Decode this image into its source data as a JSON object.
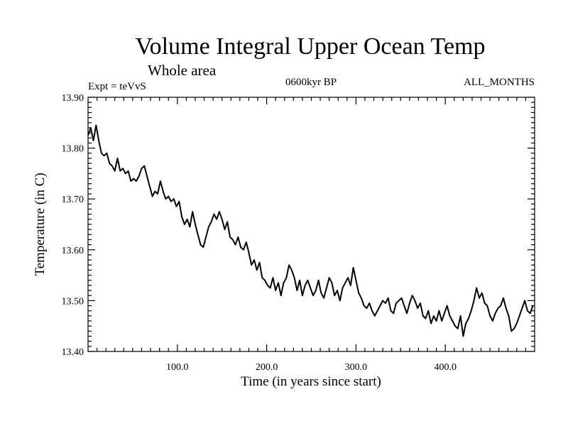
{
  "chart_data": {
    "type": "line",
    "title": "Volume Integral Upper Ocean Temp",
    "subtitle": "Whole area",
    "experiment": "Expt = teVvS",
    "period": "0600kyr BP",
    "months": "ALL_MONTHS",
    "xlabel": "Time (in years since start)",
    "ylabel": "Temperature (in C)",
    "xlim": [
      0,
      500
    ],
    "ylim": [
      13.4,
      13.9
    ],
    "xticks": [
      100,
      200,
      300,
      400
    ],
    "xtick_labels": [
      "100.0",
      "200.0",
      "300.0",
      "400.0"
    ],
    "yticks": [
      13.4,
      13.5,
      13.6,
      13.7,
      13.8,
      13.9
    ],
    "ytick_labels": [
      "13.40",
      "13.50",
      "13.60",
      "13.70",
      "13.80",
      "13.90"
    ],
    "grid": false,
    "series": [
      {
        "name": "teVvS",
        "x": [
          0,
          3,
          6,
          9,
          12,
          15,
          18,
          21,
          24,
          27,
          30,
          33,
          36,
          39,
          42,
          45,
          48,
          51,
          54,
          57,
          60,
          63,
          66,
          69,
          72,
          75,
          78,
          81,
          84,
          87,
          90,
          93,
          96,
          99,
          102,
          105,
          108,
          111,
          114,
          117,
          120,
          123,
          126,
          129,
          132,
          135,
          138,
          141,
          144,
          147,
          150,
          153,
          156,
          159,
          162,
          165,
          168,
          171,
          174,
          177,
          180,
          183,
          186,
          189,
          192,
          195,
          198,
          201,
          204,
          207,
          210,
          213,
          216,
          219,
          222,
          225,
          228,
          231,
          234,
          237,
          240,
          243,
          246,
          249,
          252,
          255,
          258,
          261,
          264,
          267,
          270,
          273,
          276,
          279,
          282,
          285,
          288,
          291,
          294,
          297,
          300,
          303,
          306,
          309,
          312,
          315,
          318,
          321,
          324,
          327,
          330,
          333,
          336,
          339,
          342,
          345,
          348,
          351,
          354,
          357,
          360,
          363,
          366,
          369,
          372,
          375,
          378,
          381,
          384,
          387,
          390,
          393,
          396,
          399,
          402,
          405,
          408,
          411,
          414,
          417,
          420,
          423,
          426,
          429,
          432,
          435,
          438,
          441,
          444,
          447,
          450,
          453,
          456,
          459,
          462,
          465,
          468,
          471,
          474,
          477,
          480,
          483,
          486,
          489,
          492,
          495,
          498
        ],
        "values": [
          13.825,
          13.84,
          13.815,
          13.845,
          13.815,
          13.79,
          13.785,
          13.79,
          13.77,
          13.765,
          13.755,
          13.78,
          13.755,
          13.76,
          13.75,
          13.755,
          13.735,
          13.74,
          13.735,
          13.745,
          13.76,
          13.765,
          13.745,
          13.725,
          13.705,
          13.715,
          13.71,
          13.735,
          13.715,
          13.7,
          13.705,
          13.695,
          13.7,
          13.685,
          13.695,
          13.665,
          13.65,
          13.66,
          13.645,
          13.675,
          13.65,
          13.63,
          13.61,
          13.605,
          13.625,
          13.645,
          13.655,
          13.67,
          13.66,
          13.675,
          13.66,
          13.64,
          13.655,
          13.625,
          13.62,
          13.61,
          13.625,
          13.605,
          13.6,
          13.615,
          13.595,
          13.57,
          13.58,
          13.56,
          13.575,
          13.545,
          13.54,
          13.53,
          13.525,
          13.545,
          13.52,
          13.535,
          13.51,
          13.535,
          13.545,
          13.57,
          13.56,
          13.545,
          13.52,
          13.54,
          13.51,
          13.53,
          13.54,
          13.525,
          13.51,
          13.52,
          13.54,
          13.515,
          13.505,
          13.525,
          13.545,
          13.535,
          13.51,
          13.52,
          13.5,
          13.525,
          13.535,
          13.545,
          13.53,
          13.565,
          13.54,
          13.515,
          13.505,
          13.49,
          13.485,
          13.495,
          13.48,
          13.47,
          13.48,
          13.49,
          13.5,
          13.495,
          13.505,
          13.48,
          13.475,
          13.495,
          13.5,
          13.505,
          13.49,
          13.475,
          13.495,
          13.51,
          13.5,
          13.485,
          13.495,
          13.47,
          13.465,
          13.48,
          13.455,
          13.47,
          13.46,
          13.48,
          13.46,
          13.475,
          13.49,
          13.47,
          13.46,
          13.45,
          13.445,
          13.47,
          13.43,
          13.455,
          13.465,
          13.48,
          13.5,
          13.525,
          13.505,
          13.515,
          13.495,
          13.49,
          13.47,
          13.46,
          13.475,
          13.485,
          13.49,
          13.505,
          13.485,
          13.47,
          13.44,
          13.445,
          13.455,
          13.47,
          13.485,
          13.5,
          13.48,
          13.475,
          13.49
        ]
      }
    ]
  }
}
